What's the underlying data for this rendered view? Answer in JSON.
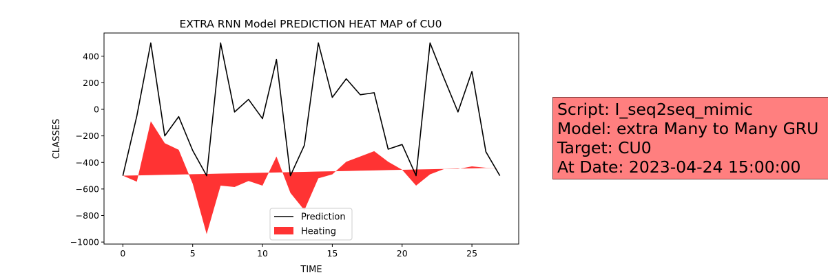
{
  "chart_data": {
    "type": "line",
    "title": "EXTRA RNN Model PREDICTION HEAT MAP of CU0",
    "xlabel": "TIME",
    "ylabel": "CLASSES",
    "xlim": [
      -1.35,
      28.35
    ],
    "ylim": [
      -1015,
      575
    ],
    "xticks": [
      0,
      5,
      10,
      15,
      20,
      25
    ],
    "xtick_labels": [
      "0",
      "5",
      "10",
      "15",
      "20",
      "25"
    ],
    "yticks": [
      -1000,
      -800,
      -600,
      -400,
      -200,
      0,
      200,
      400
    ],
    "ytick_labels": [
      "−1000",
      "−800",
      "−600",
      "−400",
      "−200",
      "0",
      "200",
      "400"
    ],
    "grid": false,
    "legend_position": "lower-center",
    "series": [
      {
        "name": "Prediction",
        "kind": "line",
        "color": "#000000",
        "x": [
          0,
          1,
          2,
          3,
          4,
          5,
          6,
          7,
          8,
          9,
          10,
          11,
          12,
          13,
          14,
          15,
          16,
          17,
          18,
          19,
          20,
          21,
          22,
          23,
          24,
          25,
          26,
          27
        ],
        "y": [
          -500,
          -50,
          500,
          -200,
          -55,
          -310,
          -500,
          500,
          -20,
          75,
          -70,
          375,
          -500,
          -270,
          500,
          90,
          230,
          110,
          125,
          -300,
          -265,
          -500,
          500,
          235,
          -20,
          285,
          -320,
          -500
        ]
      },
      {
        "name": "Heating",
        "kind": "fill_between",
        "color": "#ff0000",
        "opacity": 0.8,
        "x": [
          0,
          1,
          2,
          3,
          4,
          5,
          6,
          7,
          8,
          9,
          10,
          11,
          12,
          13,
          14,
          15,
          16,
          17,
          18,
          19,
          20,
          21,
          22,
          23,
          24,
          25,
          26,
          27
        ],
        "y_upper": [
          -500,
          -545,
          -90,
          -255,
          -305,
          -560,
          -940,
          -575,
          -585,
          -540,
          -575,
          -355,
          -630,
          -760,
          -520,
          -490,
          -395,
          -355,
          -315,
          -395,
          -455,
          -575,
          -490,
          -450,
          -450,
          -430,
          -440,
          -440
        ],
        "baseline_start": -500,
        "baseline_end": -440
      }
    ]
  },
  "info_box": {
    "lines": [
      "Script: I_seq2seq_mimic",
      "Model: extra Many to Many GRU",
      "Target: CU0",
      "At Date: 2023-04-24 15:00:00"
    ]
  }
}
